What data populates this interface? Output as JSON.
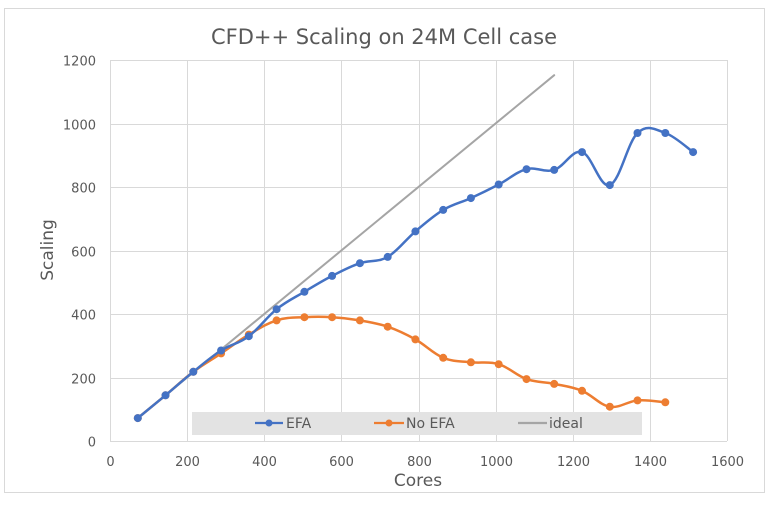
{
  "chart_data": {
    "type": "line",
    "title": "CFD++ Scaling on 24M Cell case",
    "xlabel": "Cores",
    "ylabel": "Scaling",
    "xlim": [
      0,
      1600
    ],
    "ylim": [
      0,
      1200
    ],
    "xticks": [
      "0",
      "200",
      "400",
      "600",
      "800",
      "1000",
      "1200",
      "1400",
      "1600"
    ],
    "yticks": [
      "0",
      "200",
      "400",
      "600",
      "800",
      "1000",
      "1200"
    ],
    "grid": true,
    "legend_position": "bottom-inside",
    "series": [
      {
        "name": "EFA",
        "color": "#4472c4",
        "markers": true,
        "smooth": true,
        "x": [
          72,
          144,
          216,
          288,
          360,
          432,
          504,
          576,
          648,
          720,
          792,
          864,
          936,
          1008,
          1080,
          1152,
          1224,
          1296,
          1368,
          1440,
          1512
        ],
        "y": [
          72,
          144,
          218,
          285,
          330,
          415,
          470,
          520,
          560,
          580,
          660,
          728,
          765,
          808,
          856,
          854,
          910,
          806,
          970,
          970,
          910
        ]
      },
      {
        "name": "No EFA",
        "color": "#ed7d31",
        "markers": true,
        "smooth": true,
        "x": [
          72,
          144,
          216,
          288,
          360,
          432,
          504,
          576,
          648,
          720,
          792,
          864,
          936,
          1008,
          1080,
          1152,
          1224,
          1296,
          1368,
          1440
        ],
        "y": [
          72,
          144,
          218,
          276,
          335,
          380,
          390,
          390,
          380,
          360,
          320,
          262,
          248,
          242,
          195,
          180,
          158,
          108,
          128,
          122
        ]
      },
      {
        "name": "ideal",
        "color": "#a5a5a5",
        "markers": false,
        "smooth": false,
        "x": [
          72,
          1152
        ],
        "y": [
          72,
          1152
        ]
      }
    ]
  }
}
